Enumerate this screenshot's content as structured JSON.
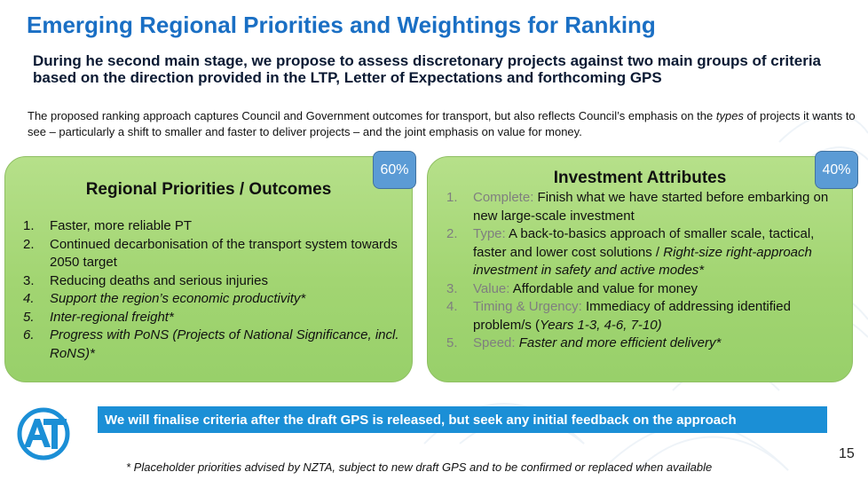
{
  "slide": {
    "title": "Emerging Regional Priorities and Weightings for Ranking",
    "subtitle": "During he second main stage, we propose to assess discretonary projects against two main groups of criteria based on the direction provided in the LTP, Letter of Expectations and forthcoming GPS",
    "intro_before": "The proposed ranking approach captures Council and Government outcomes for transport, but also reflects Council’s emphasis on the ",
    "intro_italic": "types",
    "intro_after": " of projects it wants to see – particularly a shift to smaller and faster to deliver projects – and the joint emphasis on value for money.",
    "page_number": "15"
  },
  "left_panel": {
    "heading": "Regional Priorities / Outcomes",
    "weight": "60%",
    "items": [
      {
        "num": "1.",
        "text": "Faster, more reliable PT"
      },
      {
        "num": "2.",
        "text": "Continued decarbonisation of the transport system towards 2050 target"
      },
      {
        "num": "3.",
        "text": "Reducing deaths and serious injuries"
      },
      {
        "num": "4.",
        "text": "Support the region’s economic productivity*"
      },
      {
        "num": "5.",
        "text": "Inter-regional freight*"
      },
      {
        "num": "6.",
        "text": "Progress with PoNS (Projects of National Significance, incl. RoNS)*"
      }
    ]
  },
  "right_panel": {
    "heading": "Investment Attributes",
    "weight": "40%",
    "items": [
      {
        "num": "1.",
        "key": "Complete:",
        "text": " Finish what we have started before embarking on new large-scale investment"
      },
      {
        "num": "2.",
        "key": "Type:",
        "text": " A back-to-basics approach of smaller scale, tactical, faster and lower cost solutions / ",
        "italic": "Right-size right-approach investment in safety and active modes*"
      },
      {
        "num": "3.",
        "key": "Value:",
        "text": " Affordable and value for money"
      },
      {
        "num": "4.",
        "key": "Timing & Urgency:",
        "text": " Immediacy of addressing identified problem/s (",
        "italic": "Years 1-3, 4-6, 7-10)"
      },
      {
        "num": "5.",
        "key": "Speed:",
        "text": " ",
        "italic": "Faster and more efficient delivery*"
      }
    ]
  },
  "banner": {
    "text": "We will finalise criteria after the draft GPS is released, but seek any initial feedback on the approach",
    "color": "#1b8fd6"
  },
  "footnote": "* Placeholder priorities advised by NZTA, subject to new draft GPS and to be confirmed or replaced when available",
  "logo": {
    "icon": "auckland-transport-logo-icon",
    "color": "#1b8fd6"
  }
}
